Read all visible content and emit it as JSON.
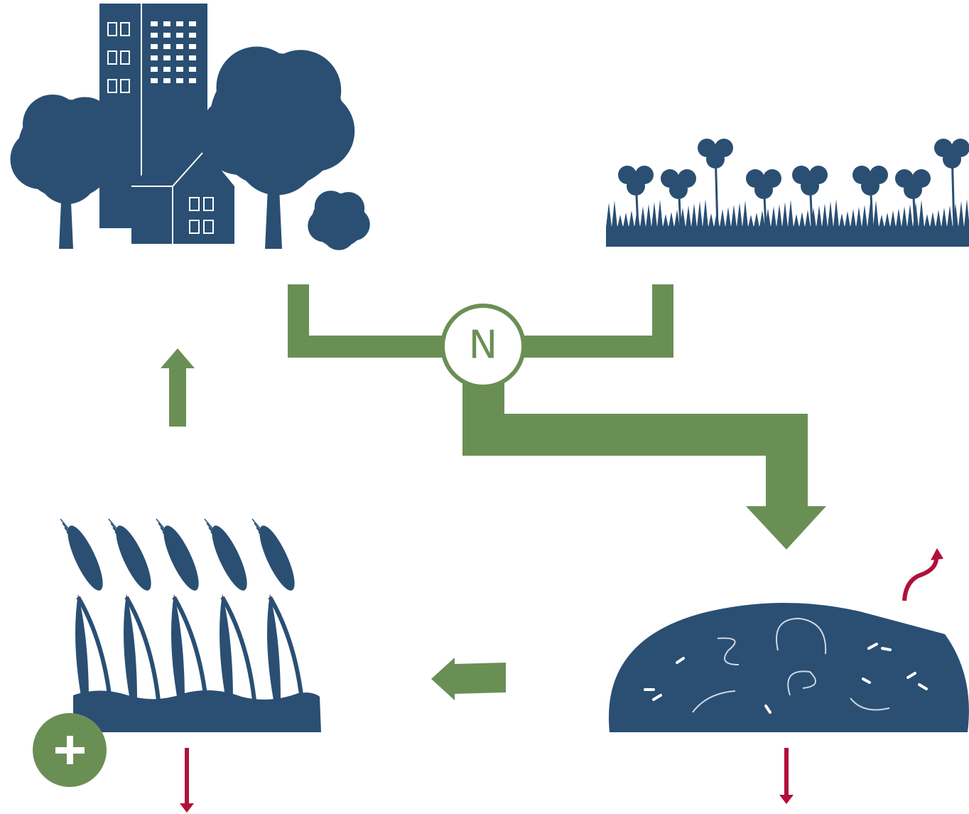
{
  "center_label": "N"
}
